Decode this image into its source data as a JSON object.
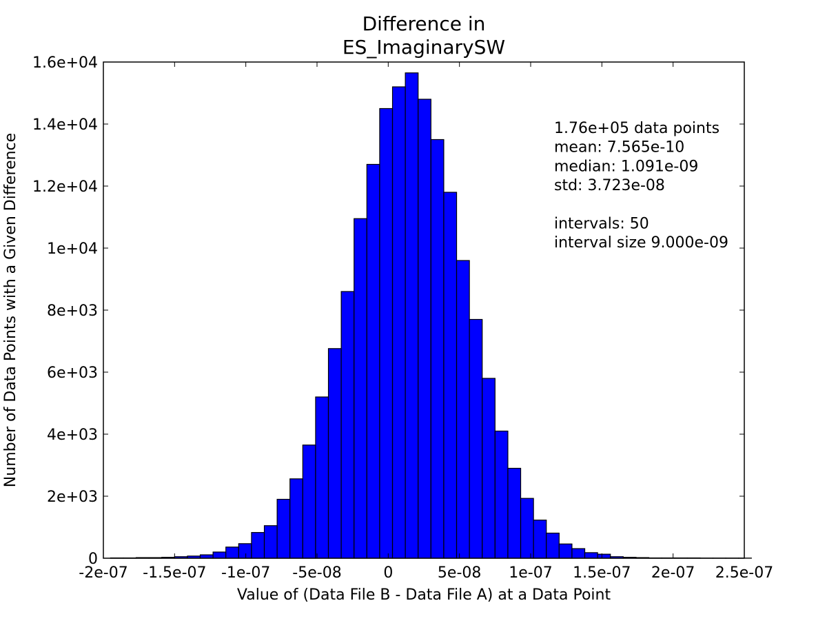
{
  "chart_data": {
    "type": "bar",
    "title_lines": [
      "Difference in",
      "ES_ImaginarySW"
    ],
    "xlabel": "Value of (Data File B - Data File A) at a Data Point",
    "ylabel": "Number of Data Points with a Given Difference",
    "xlim": [
      -2e-07,
      2.5e-07
    ],
    "ylim": [
      0,
      16000
    ],
    "xticks": [
      -2e-07,
      -1.5e-07,
      -1e-07,
      -5e-08,
      0,
      5e-08,
      1e-07,
      1.5e-07,
      2e-07,
      2.5e-07
    ],
    "xtick_labels": [
      "-2e-07",
      "-1.5e-07",
      "-1e-07",
      "-5e-08",
      "0",
      "5e-08",
      "1e-07",
      "1.5e-07",
      "2e-07",
      "2.5e-07"
    ],
    "yticks": [
      0,
      2000,
      4000,
      6000,
      8000,
      10000,
      12000,
      14000,
      16000
    ],
    "ytick_labels": [
      "0",
      "2e+03",
      "4e+03",
      "6e+03",
      "8e+03",
      "1e+04",
      "1.2e+04",
      "1.4e+04",
      "1.6e+04"
    ],
    "bin_start": -1.95e-07,
    "bin_width": 9e-09,
    "values": [
      10,
      10,
      20,
      20,
      30,
      50,
      70,
      110,
      200,
      360,
      470,
      830,
      1050,
      1900,
      2560,
      3650,
      5200,
      6760,
      8600,
      10950,
      12700,
      14500,
      15200,
      15650,
      14800,
      13500,
      11800,
      9600,
      7700,
      5800,
      4100,
      2900,
      1930,
      1230,
      810,
      460,
      310,
      180,
      130,
      50,
      30,
      20,
      10,
      10,
      10,
      10,
      5,
      5,
      5,
      5
    ],
    "bar_color": "#0000ff",
    "grid": false,
    "annotation": {
      "lines": [
        "1.76e+05 data points",
        "mean: 7.565e-10",
        "median: 1.091e-09",
        "std: 3.723e-08",
        "",
        "intervals: 50",
        "interval size 9.000e-09"
      ]
    }
  }
}
